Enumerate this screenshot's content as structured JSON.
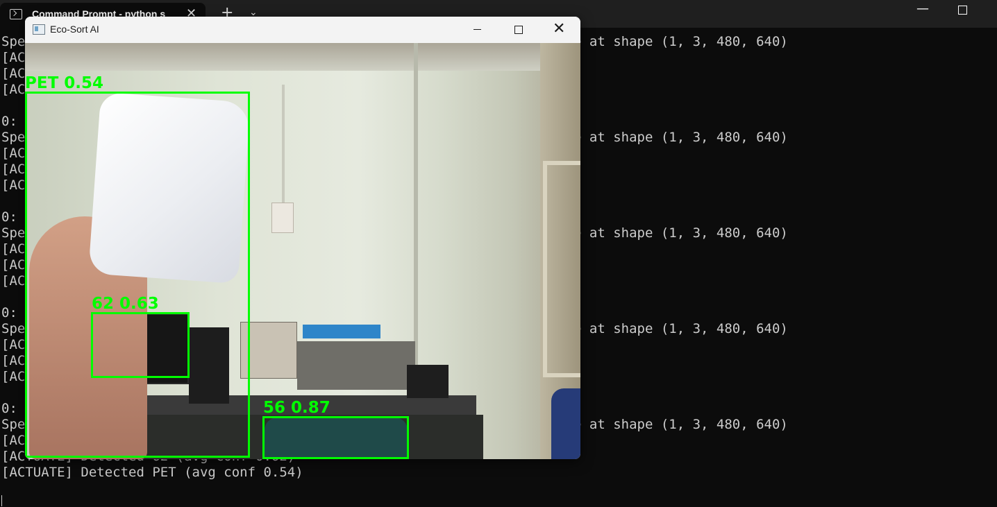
{
  "terminal_window": {
    "tab_title": "Command Prompt - python s",
    "new_tab_label": "+",
    "tab_dropdown_label": "⌄",
    "close_tab_label": "✕",
    "minimize_label": "—"
  },
  "terminal": {
    "lines": [
      "Spe",
      "[AC",
      "[AC",
      "[AC",
      "",
      "0:",
      "Spe",
      "[AC",
      "[AC",
      "[AC",
      "",
      "0:",
      "Spe",
      "[AC",
      "[AC",
      "[AC",
      "",
      "0:",
      "Spe",
      "[AC",
      "[AC",
      "[AC",
      "",
      "0:",
      "Spe",
      "[AC",
      "[ACTUATE] Detected 62 (avg conf 0.62)",
      "[ACTUATE] Detected PET (avg conf 0.54)"
    ],
    "right_fragments": [
      "e at shape (1, 3, 480, 640)",
      "e at shape (1, 3, 480, 640)",
      "e at shape (1, 3, 480, 640)",
      "e at shape (1, 3, 480, 640)",
      "e at shape (1, 3, 480, 640)"
    ]
  },
  "eco_window": {
    "title": "Eco-Sort AI",
    "close_label": "✕",
    "icon": "app-window-icon"
  },
  "detections": [
    {
      "label": "PET 0.54",
      "class_name": "PET",
      "confidence": 0.54
    },
    {
      "label": "62 0.63",
      "class_name": "62",
      "confidence": 0.63
    },
    {
      "label": "56 0.87",
      "class_name": "56",
      "confidence": 0.87
    }
  ],
  "colors": {
    "terminal_bg": "#0c0c0c",
    "terminal_text": "#cccccc",
    "detection_box": "#00ff00"
  }
}
